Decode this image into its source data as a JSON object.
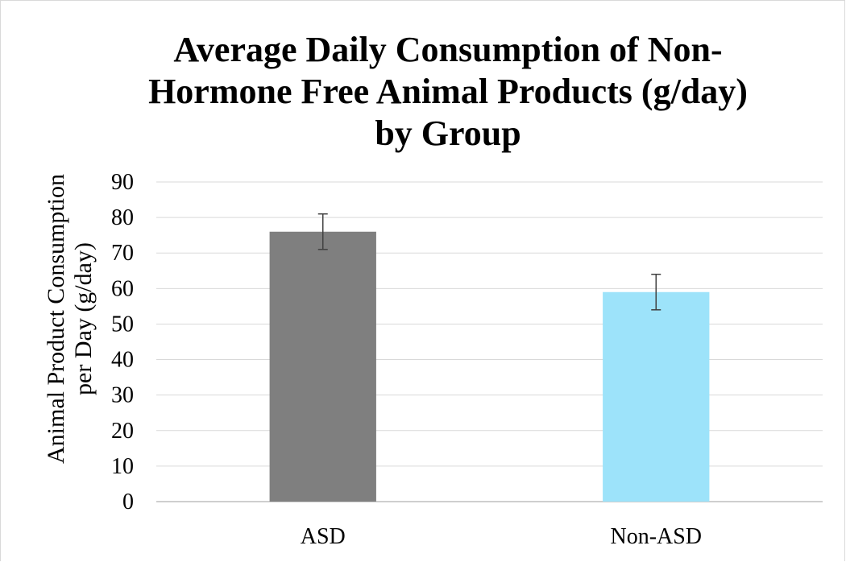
{
  "chart_data": {
    "type": "bar",
    "title_lines": [
      "Average Daily Consumption of Non-",
      "Hormone Free Animal Products (g/day)",
      "by Group"
    ],
    "ylabel_lines": [
      "Animal Product Consumption",
      "per Day (g/day)"
    ],
    "xlabel": "",
    "categories": [
      "ASD",
      "Non-ASD"
    ],
    "values": [
      76,
      59
    ],
    "error_bars": [
      {
        "low": 71,
        "high": 81
      },
      {
        "low": 54,
        "high": 64
      }
    ],
    "bar_colors": [
      "#7f7f7f",
      "#9de3fa"
    ],
    "ylim": [
      0,
      90
    ],
    "yticks": [
      0,
      10,
      20,
      30,
      40,
      50,
      60,
      70,
      80,
      90
    ],
    "grid": true,
    "legend": "none"
  }
}
